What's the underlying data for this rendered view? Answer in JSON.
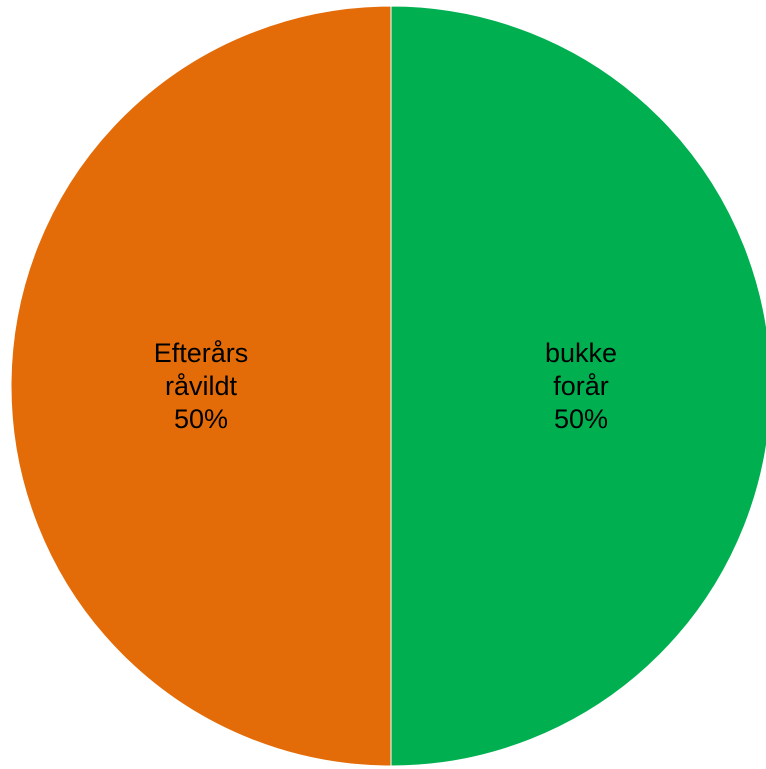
{
  "chart_data": {
    "type": "pie",
    "slices": [
      {
        "name_lines": [
          "bukke",
          "forår"
        ],
        "value": 50,
        "percent_label": "50%",
        "color": "#00b050"
      },
      {
        "name_lines": [
          "Efterårs",
          "råvildt"
        ],
        "value": 50,
        "percent_label": "50%",
        "color": "#e36c09"
      }
    ],
    "start_angle_deg": 0,
    "direction": "clockwise",
    "legend": "none",
    "title": ""
  }
}
